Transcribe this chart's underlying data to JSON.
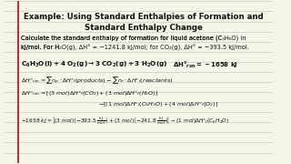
{
  "title_line1": "Example: Using Standard Enthalpies of Formation and",
  "title_line2": "Standard Enthalpy Change",
  "body_lines": [
    "Calculate the standard enthalpy of formation for liquid acetone (C₃H₆O) in",
    "kJ/mol. For H₂O(g), ΔHᶠᶠ = −1241.8 kJ/mol; for CO₂(g), ΔHᶠᶠ = −393.5 kJ/mol."
  ],
  "bg_color": "#f5f5e8",
  "line_color": "#c8c8c8",
  "title_color": "#111111",
  "body_color": "#111111",
  "red_line_color": "#cc0000"
}
